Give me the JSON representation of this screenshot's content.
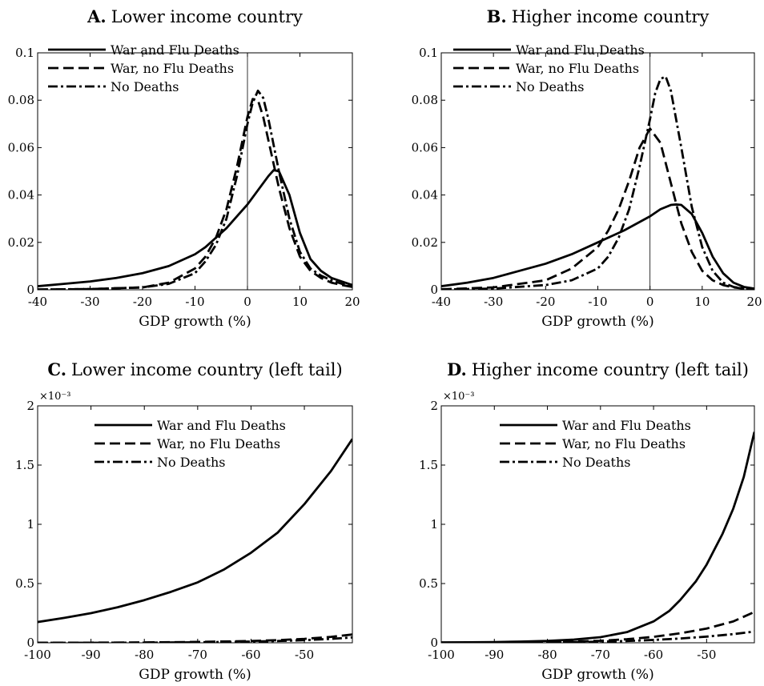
{
  "chart_data": [
    {
      "type": "line",
      "title_prefix": "A.",
      "title": "Lower income country",
      "xlabel": "GDP growth (%)",
      "ylabel": "",
      "xlim": [
        -40,
        20
      ],
      "ylim": [
        0,
        0.1
      ],
      "xticks": [
        -40,
        -30,
        -20,
        -10,
        0,
        10,
        20
      ],
      "yticks": [
        0,
        0.02,
        0.04,
        0.06,
        0.08,
        0.1
      ],
      "xtick_labels": [
        "-40",
        "-30",
        "-20",
        "-10",
        "0",
        "10",
        "20"
      ],
      "ytick_labels": [
        "0",
        "0.02",
        "0.04",
        "0.06",
        "0.08",
        "0.1"
      ],
      "y_exponent": "",
      "vline": 0,
      "grid": false,
      "legend_position": "top-left",
      "series": [
        {
          "name": "War and Flu Deaths",
          "style": "solid",
          "x": [
            -40,
            -35,
            -30,
            -25,
            -20,
            -15,
            -10,
            -8,
            -6,
            -4,
            -2,
            0,
            2,
            4,
            5,
            6,
            8,
            10,
            12,
            14,
            16,
            18,
            20
          ],
          "y": [
            0.0015,
            0.0025,
            0.0035,
            0.005,
            0.007,
            0.01,
            0.015,
            0.018,
            0.022,
            0.026,
            0.031,
            0.036,
            0.042,
            0.048,
            0.0505,
            0.05,
            0.04,
            0.024,
            0.013,
            0.008,
            0.005,
            0.0035,
            0.002
          ]
        },
        {
          "name": "War, no Flu Deaths",
          "style": "dashed",
          "x": [
            -40,
            -30,
            -20,
            -15,
            -10,
            -8,
            -6,
            -4,
            -2,
            0,
            1,
            2,
            3,
            4,
            6,
            8,
            10,
            12,
            14,
            16,
            18,
            20
          ],
          "y": [
            0.0001,
            0.0003,
            0.001,
            0.003,
            0.009,
            0.014,
            0.022,
            0.034,
            0.052,
            0.073,
            0.0805,
            0.08,
            0.073,
            0.063,
            0.043,
            0.026,
            0.014,
            0.008,
            0.005,
            0.003,
            0.002,
            0.0012
          ]
        },
        {
          "name": "No Deaths",
          "style": "dashdot",
          "x": [
            -40,
            -30,
            -20,
            -15,
            -10,
            -8,
            -6,
            -4,
            -2,
            0,
            1,
            2,
            3,
            4,
            6,
            8,
            10,
            12,
            14,
            16,
            18,
            20
          ],
          "y": [
            0.0001,
            0.0003,
            0.001,
            0.0025,
            0.007,
            0.012,
            0.019,
            0.03,
            0.048,
            0.07,
            0.079,
            0.084,
            0.081,
            0.072,
            0.05,
            0.03,
            0.016,
            0.009,
            0.006,
            0.004,
            0.0025,
            0.0015
          ]
        }
      ]
    },
    {
      "type": "line",
      "title_prefix": "B.",
      "title": "Higher income country",
      "xlabel": "GDP growth (%)",
      "ylabel": "",
      "xlim": [
        -40,
        20
      ],
      "ylim": [
        0,
        0.1
      ],
      "xticks": [
        -40,
        -30,
        -20,
        -10,
        0,
        10,
        20
      ],
      "yticks": [
        0,
        0.02,
        0.04,
        0.06,
        0.08,
        0.1
      ],
      "xtick_labels": [
        "-40",
        "-30",
        "-20",
        "-10",
        "0",
        "10",
        "20"
      ],
      "ytick_labels": [
        "0",
        "0.02",
        "0.04",
        "0.06",
        "0.08",
        "0.1"
      ],
      "y_exponent": "",
      "vline": 0,
      "grid": false,
      "legend_position": "top-left",
      "series": [
        {
          "name": "War and Flu Deaths",
          "style": "solid",
          "x": [
            -40,
            -35,
            -30,
            -25,
            -20,
            -15,
            -10,
            -5,
            0,
            2,
            4,
            5,
            6,
            8,
            10,
            12,
            14,
            16,
            18,
            20
          ],
          "y": [
            0.0015,
            0.003,
            0.005,
            0.008,
            0.011,
            0.015,
            0.02,
            0.025,
            0.031,
            0.034,
            0.0358,
            0.036,
            0.0358,
            0.032,
            0.024,
            0.014,
            0.007,
            0.003,
            0.0012,
            0.0005
          ]
        },
        {
          "name": "War, no Flu Deaths",
          "style": "dashed",
          "x": [
            -40,
            -30,
            -20,
            -15,
            -10,
            -8,
            -6,
            -4,
            -2,
            0,
            2,
            4,
            6,
            8,
            10,
            12,
            14,
            16,
            18,
            20
          ],
          "y": [
            0.0002,
            0.001,
            0.004,
            0.009,
            0.018,
            0.025,
            0.034,
            0.046,
            0.06,
            0.068,
            0.062,
            0.045,
            0.028,
            0.016,
            0.008,
            0.004,
            0.002,
            0.001,
            0.0005,
            0.0002
          ]
        },
        {
          "name": "No Deaths",
          "style": "dashdot",
          "x": [
            -40,
            -30,
            -20,
            -15,
            -10,
            -8,
            -6,
            -4,
            -2,
            0,
            1,
            2,
            3,
            4,
            6,
            8,
            10,
            12,
            14,
            16,
            18,
            20
          ],
          "y": [
            0.0001,
            0.0005,
            0.002,
            0.004,
            0.009,
            0.014,
            0.022,
            0.034,
            0.052,
            0.072,
            0.083,
            0.089,
            0.09,
            0.084,
            0.06,
            0.035,
            0.018,
            0.008,
            0.003,
            0.0012,
            0.0005,
            0.0002
          ]
        }
      ]
    },
    {
      "type": "line",
      "title_prefix": "C.",
      "title": "Lower income country (left tail)",
      "xlabel": "GDP growth (%)",
      "ylabel": "",
      "xlim": [
        -100,
        -41
      ],
      "ylim": [
        0,
        2
      ],
      "xticks": [
        -100,
        -90,
        -80,
        -70,
        -60,
        -50
      ],
      "yticks": [
        0,
        0.5,
        1,
        1.5,
        2
      ],
      "xtick_labels": [
        "-100",
        "-90",
        "-80",
        "-70",
        "-60",
        "-50"
      ],
      "ytick_labels": [
        "0",
        "0.5",
        "1",
        "1.5",
        "2"
      ],
      "y_exponent": "×10⁻³",
      "vline": null,
      "grid": false,
      "legend_position": "top-center",
      "series": [
        {
          "name": "War and Flu Deaths",
          "style": "solid",
          "x": [
            -100,
            -95,
            -90,
            -85,
            -80,
            -75,
            -70,
            -65,
            -60,
            -55,
            -50,
            -45,
            -41
          ],
          "y": [
            0.175,
            0.21,
            0.25,
            0.3,
            0.36,
            0.43,
            0.51,
            0.62,
            0.76,
            0.93,
            1.17,
            1.45,
            1.72
          ]
        },
        {
          "name": "War, no Flu Deaths",
          "style": "dashed",
          "x": [
            -100,
            -90,
            -80,
            -70,
            -60,
            -55,
            -50,
            -45,
            -41
          ],
          "y": [
            0.0,
            0.001,
            0.003,
            0.007,
            0.015,
            0.022,
            0.033,
            0.05,
            0.07
          ]
        },
        {
          "name": "No Deaths",
          "style": "dashdot",
          "x": [
            -100,
            -90,
            -80,
            -70,
            -60,
            -55,
            -50,
            -45,
            -41
          ],
          "y": [
            0.0,
            0.0,
            0.001,
            0.004,
            0.01,
            0.015,
            0.022,
            0.033,
            0.045
          ]
        }
      ]
    },
    {
      "type": "line",
      "title_prefix": "D.",
      "title": "Higher income country (left tail)",
      "xlabel": "GDP growth (%)",
      "ylabel": "",
      "xlim": [
        -100,
        -41
      ],
      "ylim": [
        0,
        2
      ],
      "xticks": [
        -100,
        -90,
        -80,
        -70,
        -60,
        -50
      ],
      "yticks": [
        0,
        0.5,
        1,
        1.5,
        2
      ],
      "xtick_labels": [
        "-100",
        "-90",
        "-80",
        "-70",
        "-60",
        "-50"
      ],
      "ytick_labels": [
        "0",
        "0.5",
        "1",
        "1.5",
        "2"
      ],
      "y_exponent": "×10⁻³",
      "vline": null,
      "grid": false,
      "legend_position": "top-center",
      "series": [
        {
          "name": "War and Flu Deaths",
          "style": "solid",
          "x": [
            -100,
            -95,
            -90,
            -85,
            -80,
            -75,
            -70,
            -65,
            -60,
            -57,
            -55,
            -52,
            -50,
            -47,
            -45,
            -43,
            -41
          ],
          "y": [
            0.003,
            0.004,
            0.006,
            0.01,
            0.016,
            0.027,
            0.047,
            0.09,
            0.18,
            0.27,
            0.36,
            0.52,
            0.66,
            0.92,
            1.13,
            1.4,
            1.78
          ]
        },
        {
          "name": "War, no Flu Deaths",
          "style": "dashed",
          "x": [
            -100,
            -90,
            -80,
            -70,
            -65,
            -60,
            -55,
            -50,
            -45,
            -41
          ],
          "y": [
            0.0,
            0.002,
            0.006,
            0.017,
            0.03,
            0.05,
            0.08,
            0.12,
            0.18,
            0.26
          ]
        },
        {
          "name": "No Deaths",
          "style": "dashdot",
          "x": [
            -100,
            -90,
            -80,
            -70,
            -65,
            -60,
            -55,
            -50,
            -45,
            -41
          ],
          "y": [
            0.0,
            0.001,
            0.003,
            0.009,
            0.015,
            0.024,
            0.036,
            0.052,
            0.073,
            0.095
          ]
        }
      ]
    }
  ]
}
